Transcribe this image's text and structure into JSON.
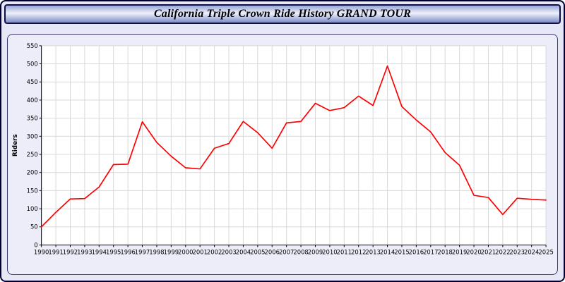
{
  "page": {
    "title": "California Triple Crown Ride History GRAND TOUR"
  },
  "chart_data": {
    "type": "line",
    "title": "California Triple Crown Ride History GRAND TOUR",
    "xlabel": "",
    "ylabel": "Riders",
    "ylim": [
      0,
      550
    ],
    "ytick_step": 50,
    "grid": true,
    "legend_position": "none",
    "line_color": "#ff0000",
    "plot_bg": "#ffffff",
    "grid_color": "#d9d9d9",
    "axis_color": "#000000",
    "categories": [
      "1990",
      "1991",
      "1992",
      "1993",
      "1994",
      "1995",
      "1996",
      "1997",
      "1998",
      "1999",
      "2000",
      "2001",
      "2002",
      "2003",
      "2004",
      "2005",
      "2006",
      "2007",
      "2008",
      "2009",
      "2010",
      "2011",
      "2012",
      "2013",
      "2014",
      "2015",
      "2016",
      "2017",
      "2018",
      "2019",
      "2020",
      "2021",
      "2022",
      "2023",
      "2024",
      "2025"
    ],
    "values": [
      50,
      90,
      127,
      128,
      160,
      222,
      223,
      340,
      283,
      245,
      213,
      210,
      267,
      280,
      341,
      310,
      267,
      337,
      341,
      391,
      371,
      379,
      411,
      385,
      494,
      382,
      345,
      312,
      255,
      220,
      137,
      131,
      84,
      129,
      126,
      124
    ]
  }
}
